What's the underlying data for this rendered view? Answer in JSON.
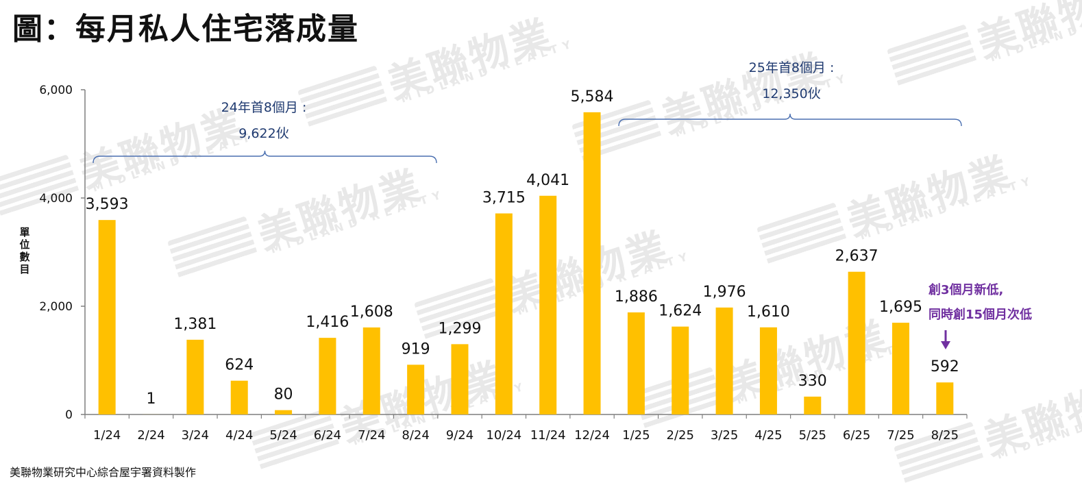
{
  "title": "圖：每月私人住宅落成量",
  "source": "美聯物業研究中心綜合屋宇署資料製作",
  "watermark": {
    "cn": "美聯物業",
    "en": "MIDLAND REALTY"
  },
  "colors": {
    "bar": "#ffc000",
    "axis": "#7f7f7f",
    "annotation": "#1f3a70",
    "callout": "#7030a0"
  },
  "annotations": {
    "y2024": {
      "line1": "24年首8個月 :",
      "line2": "9,622伙"
    },
    "y2025": {
      "line1": "25年首8個月 :",
      "line2": "12,350伙"
    },
    "callout": {
      "line1": "創3個月新低,",
      "line2": "同時創15個月次低"
    }
  },
  "chart_data": {
    "type": "bar",
    "title": "圖：每月私人住宅落成量",
    "xlabel": "",
    "ylabel": "單位數目",
    "ylim": [
      0,
      6000
    ],
    "yticks": [
      0,
      2000,
      4000,
      6000
    ],
    "ytick_labels": [
      "0",
      "2,000",
      "4,000",
      "6,000"
    ],
    "grid": false,
    "legend": "none",
    "categories": [
      "1/24",
      "2/24",
      "3/24",
      "4/24",
      "5/24",
      "6/24",
      "7/24",
      "8/24",
      "9/24",
      "10/24",
      "11/24",
      "12/24",
      "1/25",
      "2/25",
      "3/25",
      "4/25",
      "5/25",
      "6/25",
      "7/25",
      "8/25"
    ],
    "values": [
      3593,
      1,
      1381,
      624,
      80,
      1416,
      1608,
      919,
      1299,
      3715,
      4041,
      5584,
      1886,
      1624,
      1976,
      1610,
      330,
      2637,
      1695,
      592
    ],
    "data_labels": [
      "3,593",
      "1",
      "1,381",
      "624",
      "80",
      "1,416",
      "1,608",
      "919",
      "1,299",
      "3,715",
      "4,041",
      "5,584",
      "1,886",
      "1,624",
      "1,976",
      "1,610",
      "330",
      "2,637",
      "1,695",
      "592"
    ]
  }
}
